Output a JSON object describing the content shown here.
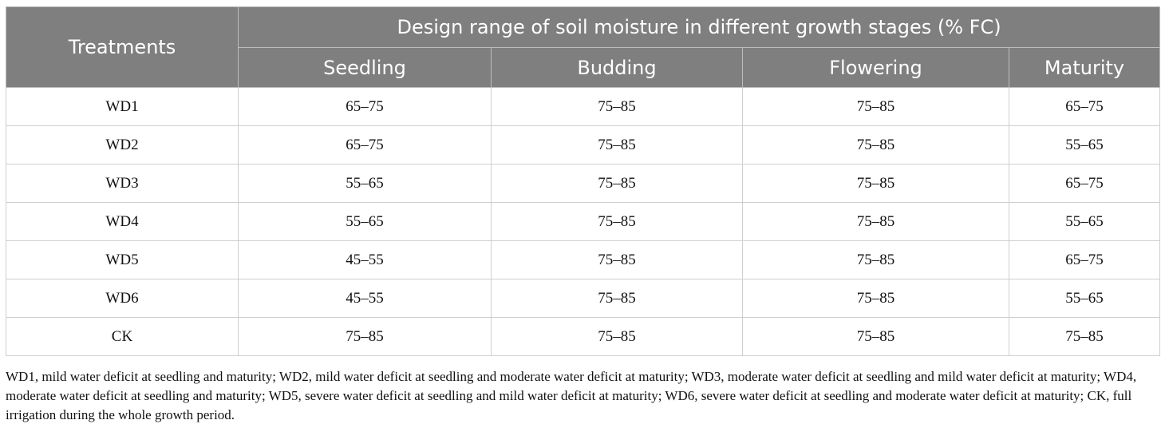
{
  "table": {
    "row_header": "Treatments",
    "group_header": "Design range of soil moisture in different growth stages (% FC)",
    "columns": [
      "Seedling",
      "Budding",
      "Flowering",
      "Maturity"
    ],
    "rows": [
      {
        "treatment": "WD1",
        "values": [
          "65–75",
          "75–85",
          "75–85",
          "65–75"
        ]
      },
      {
        "treatment": "WD2",
        "values": [
          "65–75",
          "75–85",
          "75–85",
          "55–65"
        ]
      },
      {
        "treatment": "WD3",
        "values": [
          "55–65",
          "75–85",
          "75–85",
          "65–75"
        ]
      },
      {
        "treatment": "WD4",
        "values": [
          "55–65",
          "75–85",
          "75–85",
          "55–65"
        ]
      },
      {
        "treatment": "WD5",
        "values": [
          "45–55",
          "75–85",
          "75–85",
          "65–75"
        ]
      },
      {
        "treatment": "WD6",
        "values": [
          "45–55",
          "75–85",
          "75–85",
          "55–65"
        ]
      },
      {
        "treatment": "CK",
        "values": [
          "75–85",
          "75–85",
          "75–85",
          "75–85"
        ]
      }
    ]
  },
  "footnote": "WD1, mild water deficit at seedling and maturity; WD2, mild water deficit at seedling and moderate water deficit at maturity; WD3, moderate water deficit at seedling and mild water deficit at maturity; WD4, moderate water deficit at seedling and maturity; WD5, severe water deficit at seedling and mild water deficit at maturity; WD6, severe water deficit at seedling and moderate water deficit at maturity; CK, full irrigation during the whole growth period.",
  "colors": {
    "header_bg": "#7f7f7f",
    "header_text": "#ffffff",
    "border": "#cfcfcf"
  }
}
